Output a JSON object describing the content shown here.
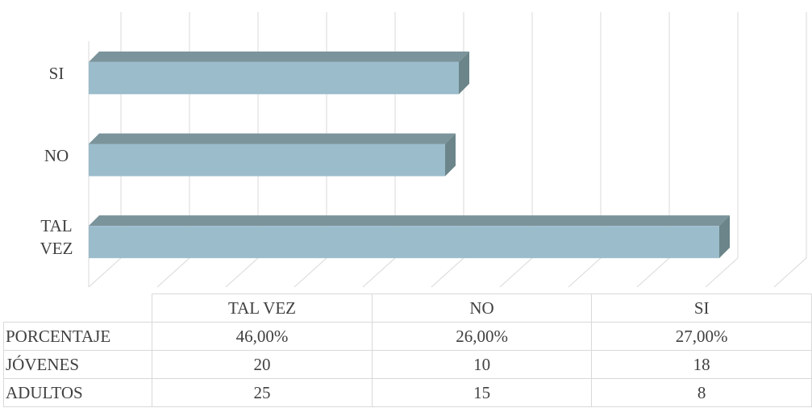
{
  "chart_data": {
    "type": "bar",
    "orientation": "horizontal",
    "categories": [
      "TAL VEZ",
      "NO",
      "SI"
    ],
    "series": [
      {
        "name": "PORCENTAJE",
        "color": "#9bbccb",
        "values": [
          46,
          26,
          27
        ],
        "value_labels": [
          "46,00%",
          "26,00%",
          "27,00%"
        ]
      },
      {
        "name": "JÓVENES",
        "values": [
          20,
          10,
          18
        ]
      },
      {
        "name": "ADULTOS",
        "values": [
          25,
          15,
          8
        ]
      }
    ],
    "xlim": [
      0,
      50
    ],
    "xticks": [
      0,
      5,
      10,
      15,
      20,
      25,
      30,
      35,
      40,
      45,
      50
    ],
    "grid": true
  }
}
